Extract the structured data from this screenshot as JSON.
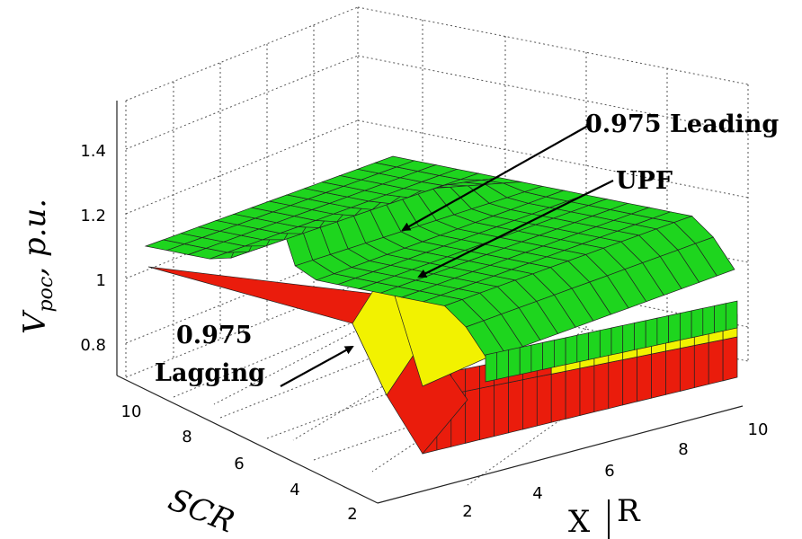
{
  "chart_data": {
    "type": "surface3d",
    "z_axis": {
      "label_main": "V",
      "label_sub": "poc",
      "label_unit": ", p.u.",
      "ticks": [
        "0.8",
        "1",
        "1.2",
        "1.4"
      ]
    },
    "scr_axis": {
      "label": "SCR",
      "ticks": [
        "2",
        "4",
        "6",
        "8",
        "10"
      ]
    },
    "xr_axis": {
      "label_left": "X",
      "label_right": "R",
      "ticks": [
        "2",
        "4",
        "6",
        "8",
        "10"
      ]
    },
    "annotations": {
      "leading": "0.975 Leading",
      "upf": "UPF",
      "lagging_line1": "0.975",
      "lagging_line2": "Lagging"
    },
    "series": [
      {
        "name": "0.975 Leading",
        "color": "#1ed51e",
        "plateau_value": 1.0,
        "peak_value": 1.12
      },
      {
        "name": "UPF",
        "color": "#f2f200",
        "plateau_value": 0.98,
        "peak_value": 1.07
      },
      {
        "name": "0.975 Lagging",
        "color": "#ea1c0c",
        "plateau_value": 0.95,
        "peak_value": 1.04
      }
    ],
    "grid": true
  }
}
